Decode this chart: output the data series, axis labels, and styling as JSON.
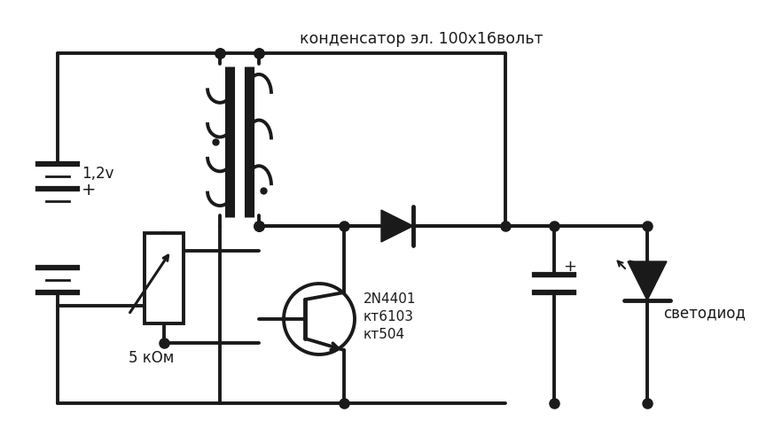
{
  "bg_color": "#ffffff",
  "line_color": "#1a1a1a",
  "line_width": 2.8,
  "label_battery": "1,2v",
  "label_battery_plus": "+",
  "label_resistor": "5 кОм",
  "label_transistor_1": "2N4401",
  "label_transistor_2": "кт6103",
  "label_transistor_3": "кт504",
  "label_capacitor": "конденсатор эл. 100х16вольт",
  "label_led": "светодиод",
  "label_cap_plus": "+"
}
